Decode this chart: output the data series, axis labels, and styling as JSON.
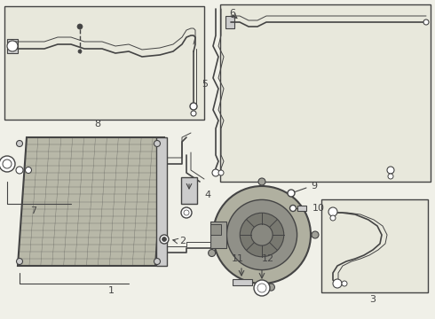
{
  "bg_color": "#f0f0e8",
  "line_color": "#444444",
  "box_fill": "#e8e8dc",
  "white": "#ffffff",
  "gray_light": "#cccccc",
  "gray_med": "#999999",
  "gray_dark": "#666666",
  "condenser_fill": "#b0b0a0",
  "lw_thick": 1.8,
  "lw_med": 1.2,
  "lw_thin": 0.7,
  "font_size": 8,
  "fig_w": 4.9,
  "fig_h": 3.6,
  "dpi": 100
}
